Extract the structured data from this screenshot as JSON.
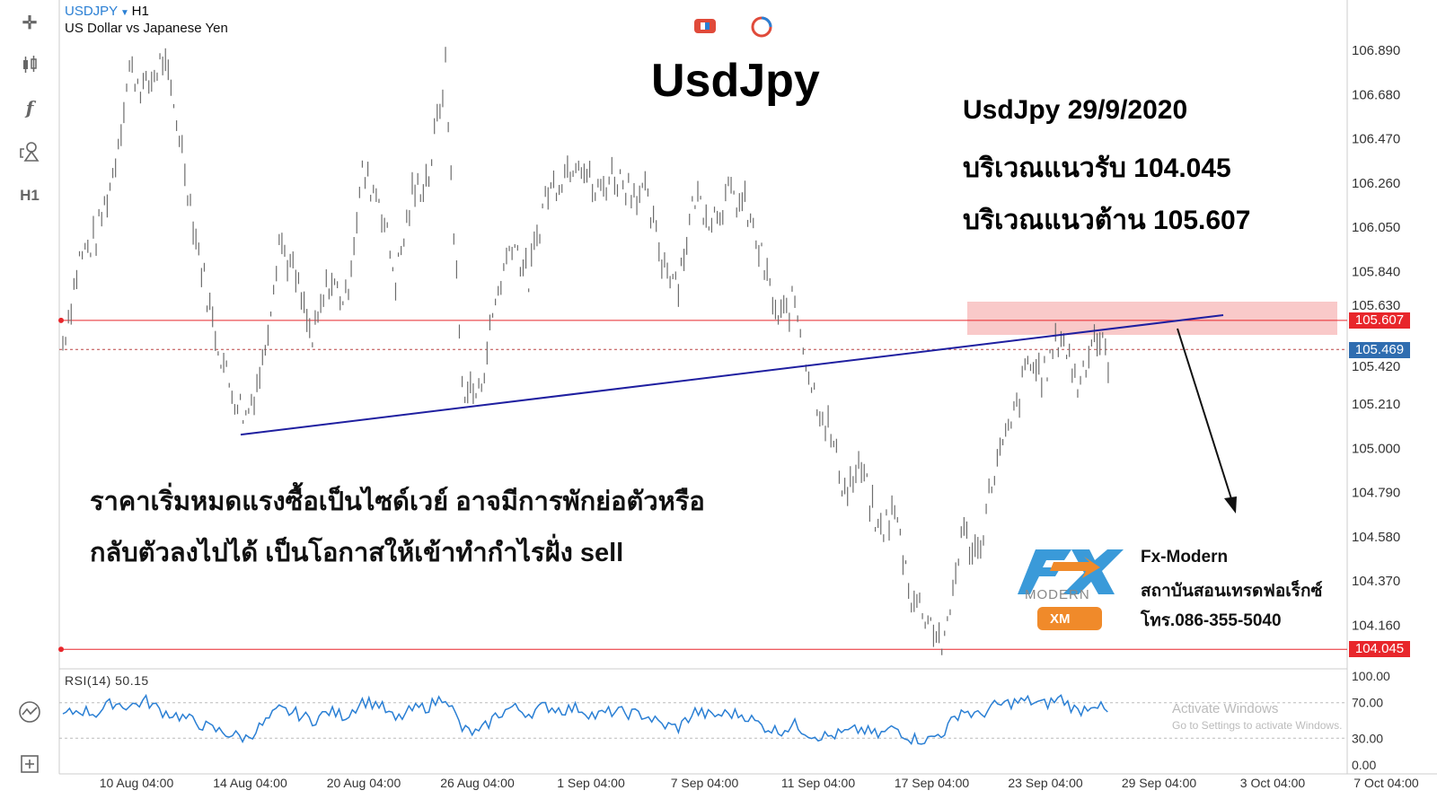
{
  "header": {
    "symbol": "USDJPY",
    "timeframe": "H1",
    "description": "US Dollar vs Japanese Yen"
  },
  "toolbar": {
    "items": [
      "crosshair-icon",
      "candles-icon",
      "indicator-icon",
      "shapes-icon",
      "timeframe"
    ],
    "timeframe_label": "H1",
    "bottom": [
      "indicator-chart-icon",
      "add-panel-icon"
    ]
  },
  "annotations": {
    "title": "UsdJpy",
    "info_lines": [
      "UsdJpy 29/9/2020",
      "บริเวณแนวรับ 104.045",
      "บริเวณแนวต้าน 105.607"
    ],
    "note_lines": [
      "ราคาเริ่มหมดแรงซื้อเป็นไซด์เวย์ อาจมีการพักย่อตัวหรือ",
      "กลับตัวลงไปได้ เป็นโอกาสให้เข้าทำกำไรฝั่ง sell"
    ]
  },
  "brand": {
    "logo_text": "FX MODERN PRESENTED BY XM",
    "name": "Fx-Modern",
    "tagline": "สถาบันสอนเทรดฟอเร็กซ์",
    "phone": "โทร.086-355-5040"
  },
  "watermark": {
    "line1": "Activate Windows",
    "line2": "Go to Settings to activate Windows."
  },
  "price_tags": {
    "resistance": "105.607",
    "current": "105.469",
    "support": "104.045"
  },
  "colors": {
    "resistance": "#e8262b",
    "current": "#2f6db0",
    "trendline": "#1f1fa0",
    "zone": "#f9c9c9",
    "candles": "#6d6d6d",
    "rsi": "#2a7fd4"
  },
  "rsi": {
    "label": "RSI(14) 50.15",
    "ticks": [
      "100.00",
      "70.00",
      "30.00",
      "0.00"
    ]
  },
  "chart_data": {
    "type": "line",
    "y_ticks": [
      "106.890",
      "106.680",
      "106.470",
      "106.260",
      "106.050",
      "105.840",
      "105.630",
      "105.420",
      "105.210",
      "105.000",
      "104.790",
      "104.580",
      "104.370",
      "104.160"
    ],
    "x_ticks": [
      "10 Aug 04:00",
      "14 Aug 04:00",
      "20 Aug 04:00",
      "26 Aug 04:00",
      "1 Sep 04:00",
      "7 Sep 04:00",
      "11 Sep 04:00",
      "17 Sep 04:00",
      "23 Sep 04:00",
      "29 Sep 04:00",
      "3 Oct 04:00",
      "7 Oct 04:00"
    ],
    "ylim": [
      103.9,
      107.1
    ],
    "price": [
      105.5,
      105.9,
      106.0,
      106.3,
      106.8,
      106.7,
      106.85,
      106.5,
      106.0,
      105.6,
      105.3,
      105.15,
      105.4,
      106.0,
      105.8,
      105.5,
      105.8,
      105.7,
      106.3,
      106.2,
      105.8,
      106.2,
      106.3,
      106.8,
      105.3,
      105.25,
      105.7,
      106.0,
      105.8,
      106.2,
      106.3,
      106.4,
      106.2,
      106.3,
      106.25,
      106.2,
      105.9,
      105.8,
      106.2,
      106.1,
      106.2,
      106.15,
      105.9,
      105.6,
      105.7,
      105.3,
      105.1,
      104.8,
      104.9,
      104.6,
      104.7,
      104.3,
      104.2,
      104.05,
      104.6,
      104.5,
      104.9,
      105.1,
      105.4,
      105.35,
      105.55,
      105.3,
      105.55,
      105.4
    ],
    "rsi": [
      55,
      62,
      58,
      70,
      66,
      72,
      60,
      55,
      48,
      40,
      35,
      30,
      45,
      62,
      58,
      50,
      60,
      55,
      72,
      68,
      50,
      62,
      66,
      78,
      40,
      35,
      55,
      65,
      58,
      66,
      62,
      64,
      55,
      60,
      58,
      56,
      45,
      42,
      60,
      55,
      58,
      56,
      44,
      38,
      45,
      34,
      32,
      36,
      40,
      33,
      42,
      30,
      28,
      38,
      62,
      55,
      66,
      70,
      72,
      68,
      75,
      60,
      70,
      55
    ],
    "levels": {
      "resistance": 105.607,
      "current": 105.469,
      "support": 104.045
    },
    "trendline": [
      105.15,
      105.72
    ]
  }
}
